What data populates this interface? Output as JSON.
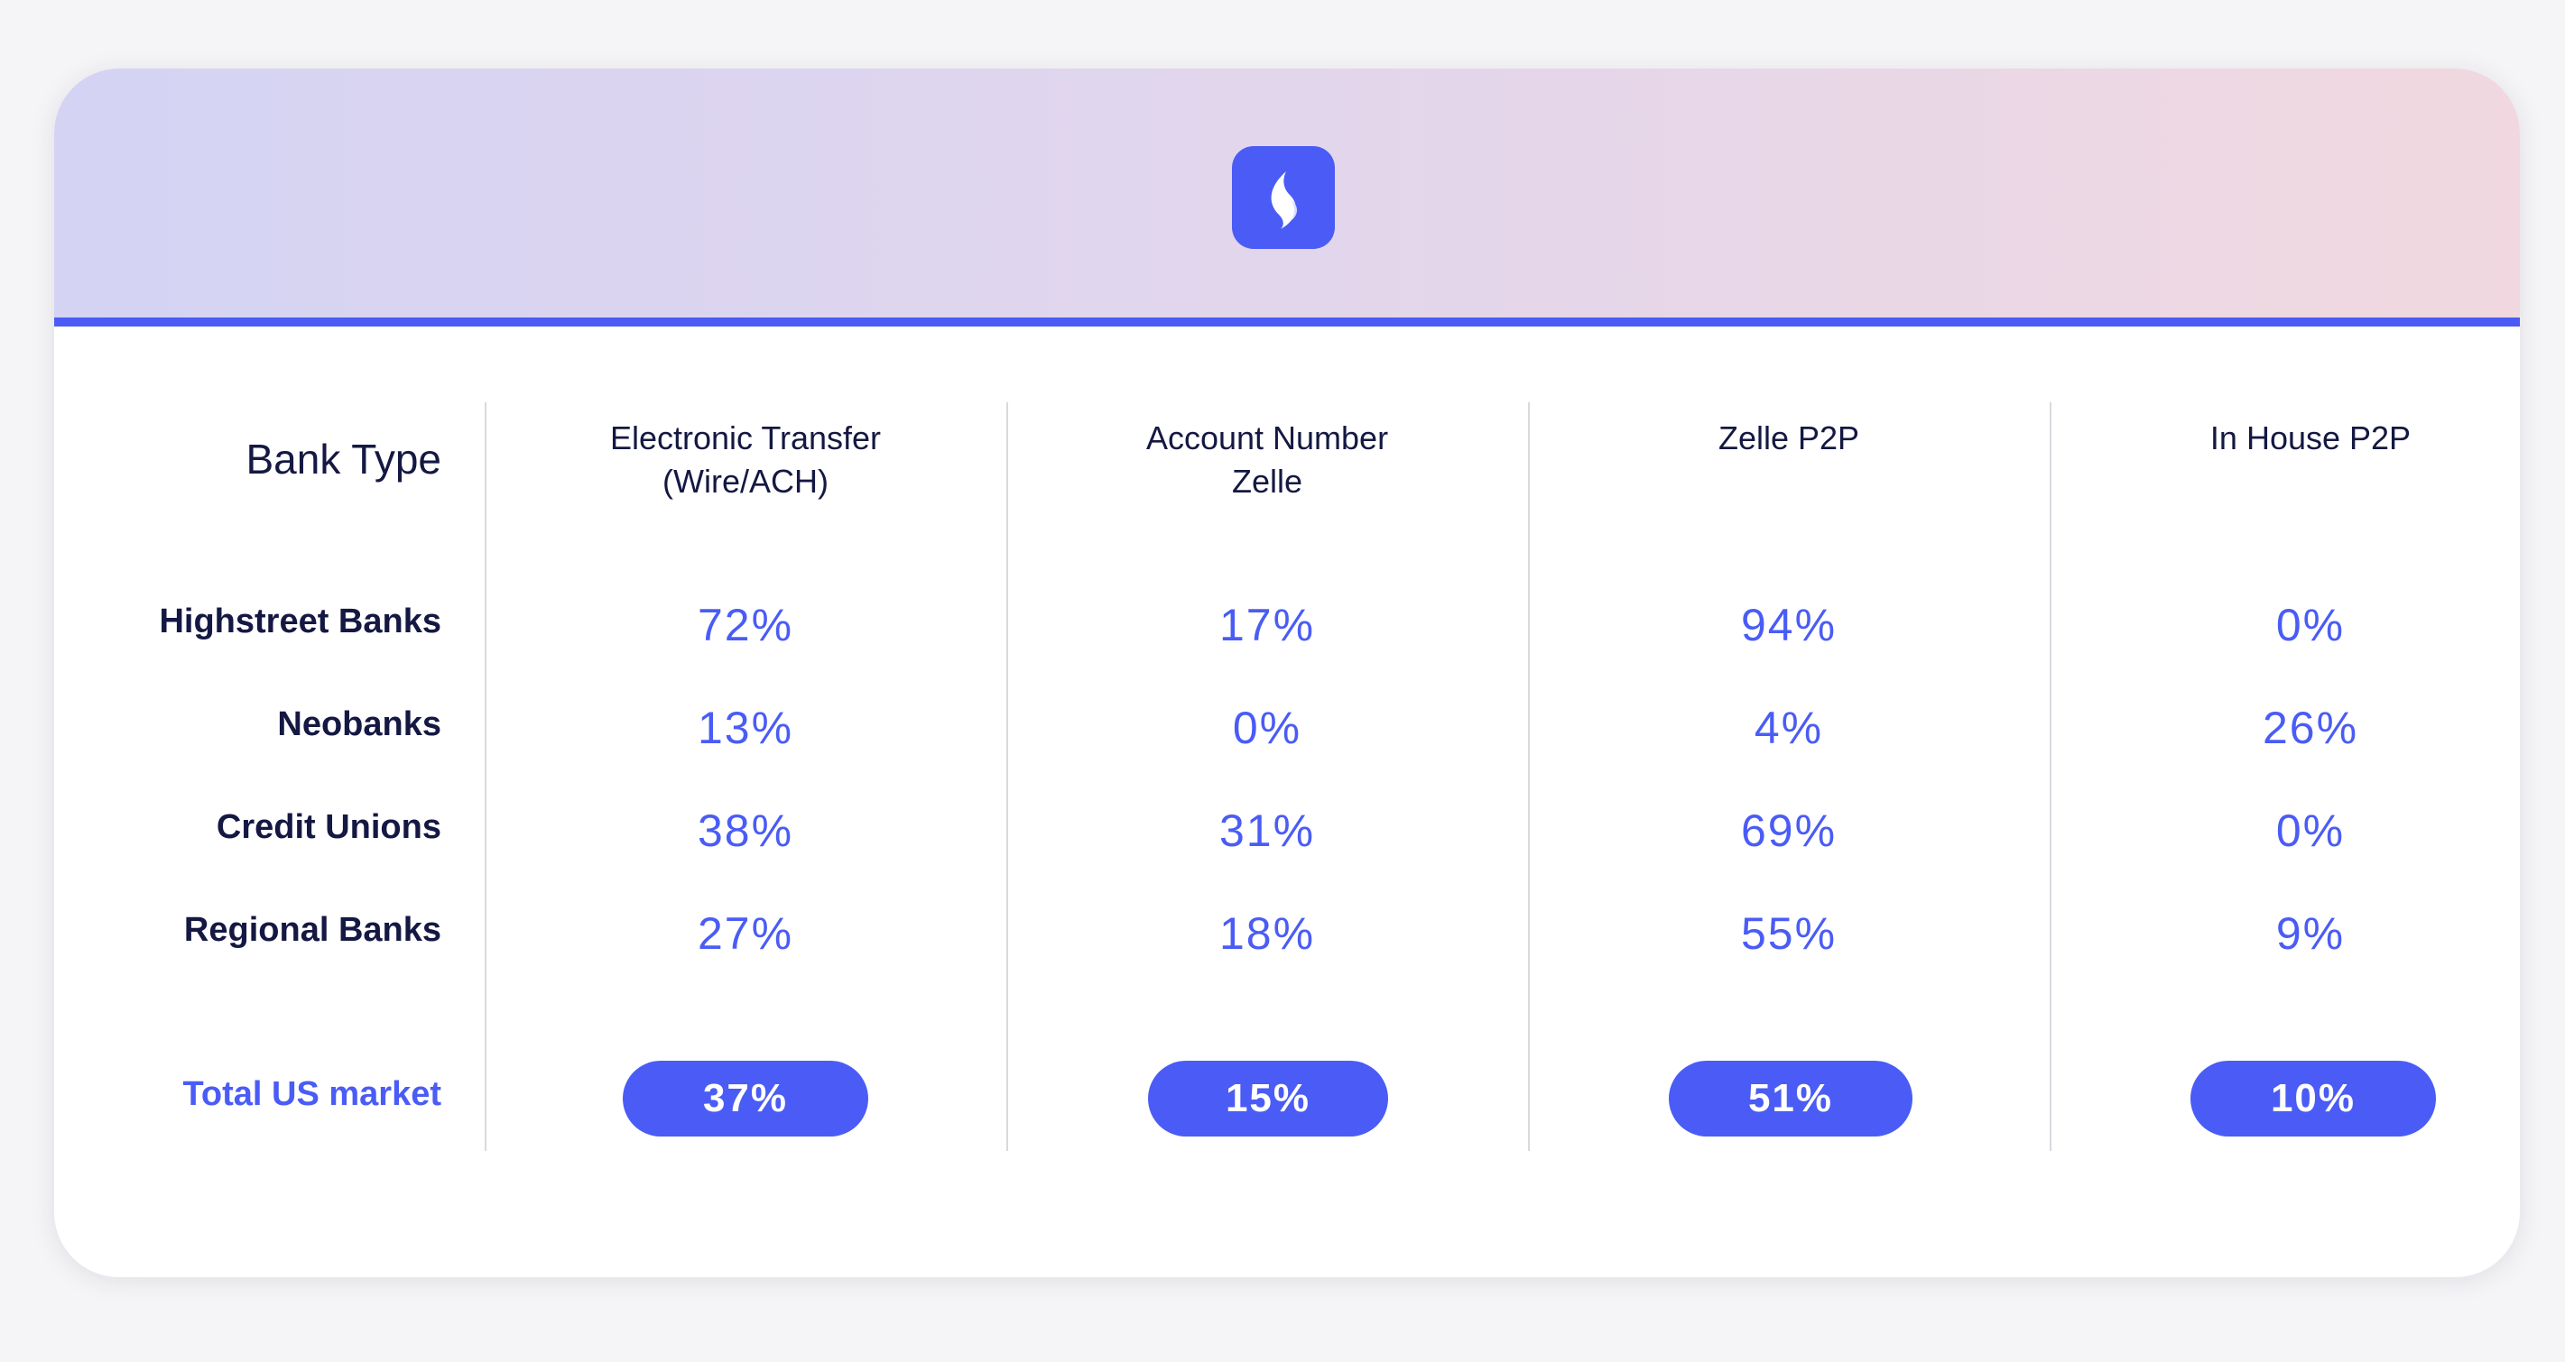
{
  "table": {
    "row_header": "Bank Type",
    "columns": [
      {
        "line1": "Electronic Transfer",
        "line2": "(Wire/ACH)"
      },
      {
        "line1": "Account Number",
        "line2": "Zelle"
      },
      {
        "line1": "Zelle P2P",
        "line2": ""
      },
      {
        "line1": "In House P2P",
        "line2": ""
      }
    ],
    "rows": [
      {
        "label": "Highstreet Banks",
        "values": [
          "72%",
          "17%",
          "94%",
          "0%"
        ]
      },
      {
        "label": "Neobanks",
        "values": [
          "13%",
          "0%",
          "4%",
          "26%"
        ]
      },
      {
        "label": "Credit Unions",
        "values": [
          "38%",
          "31%",
          "69%",
          "0%"
        ]
      },
      {
        "label": "Regional Banks",
        "values": [
          "27%",
          "18%",
          "55%",
          "9%"
        ]
      }
    ],
    "total": {
      "label": "Total US market",
      "values": [
        "37%",
        "15%",
        "51%",
        "10%"
      ]
    }
  },
  "colors": {
    "accent": "#4a5cf5",
    "text_dark": "#141842"
  },
  "icons": {
    "logo": "brand-logo-icon"
  }
}
